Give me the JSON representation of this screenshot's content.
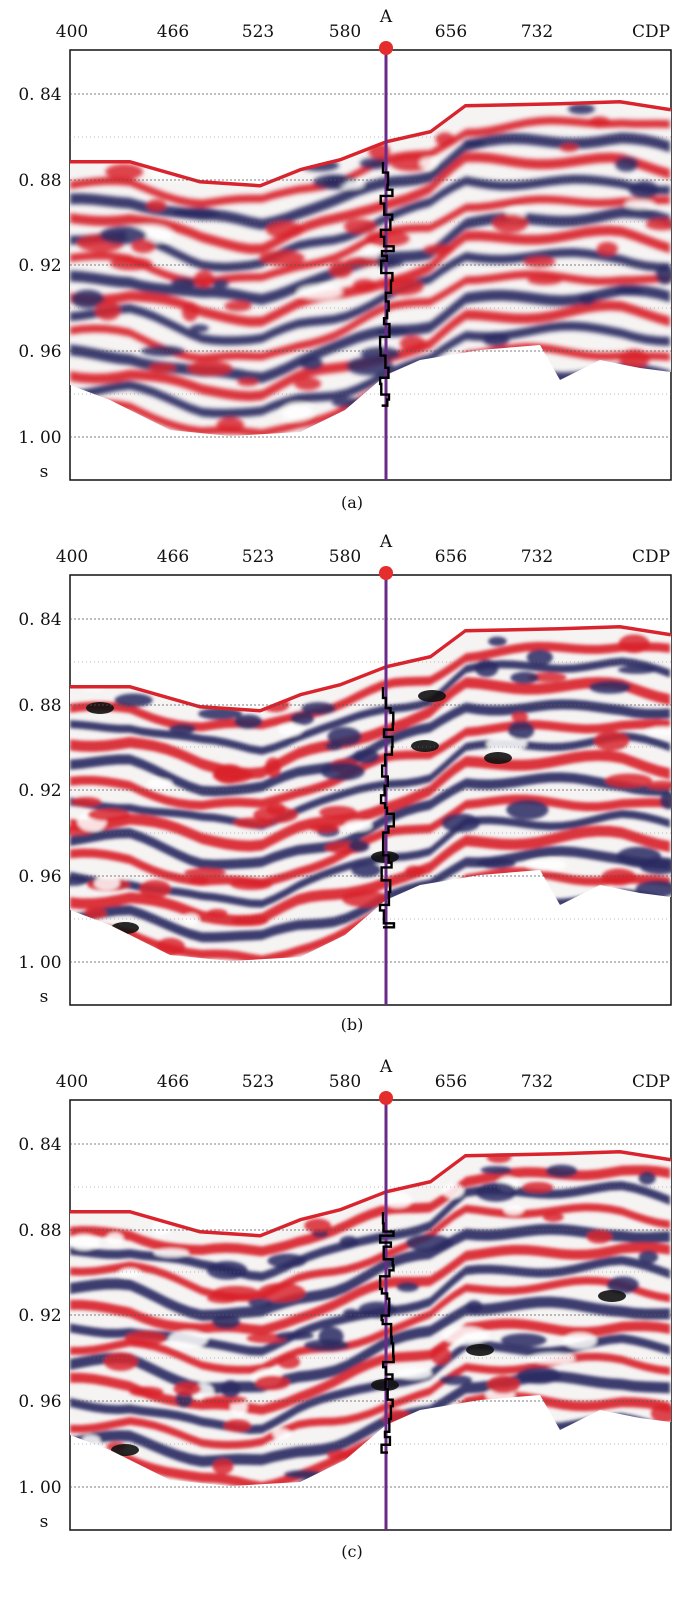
{
  "figure": {
    "marker_label": "A",
    "x_axis_unit": "CDP",
    "y_axis_unit": "s",
    "x_ticks": [
      "400",
      "466",
      "523",
      "580",
      "656",
      "732"
    ],
    "y_ticks": [
      "0.84",
      "0.88",
      "0.92",
      "0.96",
      "1.00"
    ],
    "colors": {
      "positive": "#d9232d",
      "negative": "#2c2c63",
      "well_line": "#6a2a86",
      "marker": "#e52d2d",
      "log_curve": "#000000"
    }
  },
  "panels": [
    {
      "id": "a",
      "caption": "(a)"
    },
    {
      "id": "b",
      "caption": "(b)"
    },
    {
      "id": "c",
      "caption": "(c)"
    }
  ],
  "chart_data": [
    {
      "type": "heatmap",
      "panel": "a",
      "x_ticks": [
        400,
        466,
        523,
        580,
        656,
        732
      ],
      "y_ticks": [
        0.84,
        0.88,
        0.92,
        0.96,
        1.0
      ],
      "well_position_label": "A"
    },
    {
      "type": "heatmap",
      "panel": "b",
      "x_ticks": [
        400,
        466,
        523,
        580,
        656,
        732
      ],
      "y_ticks": [
        0.84,
        0.88,
        0.92,
        0.96,
        1.0
      ],
      "well_position_label": "A"
    },
    {
      "type": "heatmap",
      "panel": "c",
      "x_ticks": [
        400,
        466,
        523,
        580,
        656,
        732
      ],
      "y_ticks": [
        0.84,
        0.88,
        0.92,
        0.96,
        1.0
      ],
      "well_position_label": "A"
    }
  ]
}
